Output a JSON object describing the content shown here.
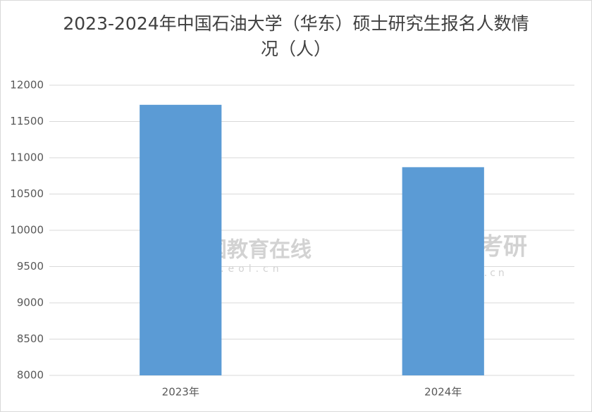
{
  "chart_data": {
    "type": "bar",
    "title": "2023-2024年中国石油大学（华东）硕士研究生报名人数情况（人）",
    "categories": [
      "2023年",
      "2024年"
    ],
    "values": [
      11730,
      10870
    ],
    "color": "#5b9bd5",
    "ylim": [
      8000,
      12000
    ],
    "yticks": [
      8000,
      8500,
      9000,
      9500,
      10000,
      10500,
      11000,
      11500,
      12000
    ],
    "grid": true
  },
  "watermarks": [
    "中国教育在线",
    "www.eol.cn",
    "掌上考研",
    "kaoyan.cn"
  ]
}
